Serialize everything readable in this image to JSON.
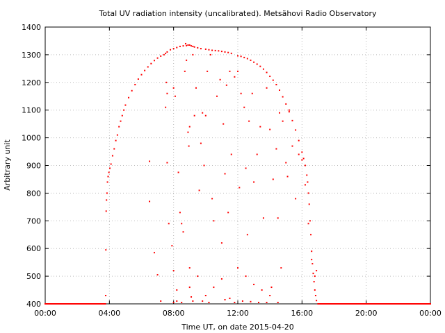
{
  "chart_data": {
    "type": "scatter",
    "title": "Total UV radiation intensity (uncalibrated). Metsähovi Radio Observatory",
    "xlabel": "Time UT, on date 2015-04-20",
    "ylabel": "Arbitrary unit",
    "x_unit": "hours UT",
    "xlim": [
      0,
      24
    ],
    "ylim": [
      400,
      1400
    ],
    "xticks": [
      0,
      4,
      8,
      12,
      16,
      20,
      24
    ],
    "xtick_labels": [
      "00:00",
      "04:00",
      "08:00",
      "12:00",
      "16:00",
      "20:00",
      "00:00"
    ],
    "yticks": [
      400,
      500,
      600,
      700,
      800,
      900,
      1000,
      1100,
      1200,
      1300,
      1400
    ],
    "ytick_labels": [
      "400",
      "500",
      "600",
      "700",
      "800",
      "900",
      "1000",
      "1100",
      "1200",
      "1300",
      "1400"
    ],
    "grid": true,
    "marker_color": "#ff0000",
    "series": [
      {
        "points": [
          [
            0.0,
            400
          ],
          [
            0.5,
            400
          ],
          [
            1.0,
            400
          ],
          [
            1.5,
            400
          ],
          [
            2.0,
            400
          ],
          [
            2.5,
            400
          ],
          [
            3.0,
            400
          ],
          [
            3.5,
            400
          ],
          [
            3.75,
            400
          ],
          [
            3.77,
            430
          ],
          [
            3.78,
            595
          ],
          [
            3.8,
            735
          ],
          [
            3.82,
            775
          ],
          [
            3.85,
            800
          ],
          [
            3.88,
            840
          ],
          [
            3.92,
            860
          ],
          [
            3.97,
            875
          ],
          [
            4.03,
            890
          ],
          [
            4.1,
            905
          ],
          [
            4.2,
            935
          ],
          [
            4.3,
            960
          ],
          [
            4.4,
            990
          ],
          [
            4.5,
            1010
          ],
          [
            4.6,
            1040
          ],
          [
            4.7,
            1060
          ],
          [
            4.8,
            1080
          ],
          [
            4.9,
            1100
          ],
          [
            5.0,
            1118
          ],
          [
            5.2,
            1145
          ],
          [
            5.4,
            1170
          ],
          [
            5.6,
            1192
          ],
          [
            5.8,
            1212
          ],
          [
            6.0,
            1228
          ],
          [
            6.2,
            1243
          ],
          [
            6.4,
            1256
          ],
          [
            6.6,
            1268
          ],
          [
            6.8,
            1279
          ],
          [
            7.0,
            1288
          ],
          [
            7.2,
            1295
          ],
          [
            7.4,
            1300
          ],
          [
            7.5,
            1305
          ],
          [
            7.6,
            1310
          ],
          [
            7.8,
            1318
          ],
          [
            8.0,
            1322
          ],
          [
            8.2,
            1326
          ],
          [
            8.4,
            1330
          ],
          [
            8.6,
            1332
          ],
          [
            8.75,
            1340
          ],
          [
            8.8,
            1333
          ],
          [
            8.9,
            1335
          ],
          [
            9.0,
            1335
          ],
          [
            9.1,
            1332
          ],
          [
            9.2,
            1330
          ],
          [
            9.3,
            1328
          ],
          [
            9.5,
            1325
          ],
          [
            9.7,
            1322
          ],
          [
            10.0,
            1320
          ],
          [
            10.2,
            1318
          ],
          [
            10.4,
            1316
          ],
          [
            10.6,
            1315
          ],
          [
            10.8,
            1314
          ],
          [
            11.0,
            1312
          ],
          [
            11.2,
            1310
          ],
          [
            11.4,
            1308
          ],
          [
            11.6,
            1305
          ],
          [
            12.0,
            1296
          ],
          [
            12.2,
            1294
          ],
          [
            12.4,
            1290
          ],
          [
            12.6,
            1286
          ],
          [
            12.8,
            1280
          ],
          [
            13.0,
            1273
          ],
          [
            13.2,
            1266
          ],
          [
            13.4,
            1258
          ],
          [
            13.6,
            1248
          ],
          [
            13.8,
            1236
          ],
          [
            14.0,
            1222
          ],
          [
            14.2,
            1208
          ],
          [
            14.4,
            1192
          ],
          [
            14.6,
            1172
          ],
          [
            14.8,
            1148
          ],
          [
            15.0,
            1122
          ],
          [
            15.2,
            1094
          ],
          [
            15.4,
            1062
          ],
          [
            15.6,
            1028
          ],
          [
            15.8,
            990
          ],
          [
            16.0,
            948
          ],
          [
            16.1,
            925
          ],
          [
            16.2,
            900
          ],
          [
            16.3,
            865
          ],
          [
            16.35,
            840
          ],
          [
            16.4,
            800
          ],
          [
            16.45,
            760
          ],
          [
            16.5,
            700
          ],
          [
            16.55,
            650
          ],
          [
            16.6,
            590
          ],
          [
            16.65,
            545
          ],
          [
            16.7,
            510
          ],
          [
            16.75,
            480
          ],
          [
            16.8,
            450
          ],
          [
            16.85,
            430
          ],
          [
            16.9,
            412
          ],
          [
            17.0,
            400
          ],
          [
            17.5,
            400
          ],
          [
            18.0,
            400
          ],
          [
            18.5,
            400
          ],
          [
            19.0,
            400
          ],
          [
            19.5,
            400
          ],
          [
            20.0,
            400
          ],
          [
            20.5,
            400
          ],
          [
            21.0,
            400
          ],
          [
            21.5,
            400
          ],
          [
            22.0,
            400
          ],
          [
            22.5,
            400
          ],
          [
            23.0,
            400
          ],
          [
            23.5,
            400
          ],
          [
            24.0,
            400
          ],
          [
            6.5,
            915
          ],
          [
            6.5,
            770
          ],
          [
            6.8,
            585
          ],
          [
            7.0,
            505
          ],
          [
            7.2,
            410
          ],
          [
            7.5,
            1110
          ],
          [
            7.55,
            1200
          ],
          [
            7.6,
            1160
          ],
          [
            7.6,
            910
          ],
          [
            7.7,
            690
          ],
          [
            7.9,
            610
          ],
          [
            8.0,
            405
          ],
          [
            8.0,
            1180
          ],
          [
            8.1,
            1150
          ],
          [
            8.2,
            410
          ],
          [
            8.3,
            875
          ],
          [
            8.4,
            730
          ],
          [
            8.5,
            690
          ],
          [
            8.6,
            660
          ],
          [
            8.7,
            1240
          ],
          [
            8.8,
            1280
          ],
          [
            8.9,
            1020
          ],
          [
            8.95,
            970
          ],
          [
            9.0,
            1040
          ],
          [
            9.0,
            530
          ],
          [
            9.1,
            425
          ],
          [
            9.2,
            1300
          ],
          [
            9.3,
            1080
          ],
          [
            9.4,
            1180
          ],
          [
            9.6,
            810
          ],
          [
            9.7,
            980
          ],
          [
            9.8,
            1090
          ],
          [
            9.9,
            900
          ],
          [
            10.0,
            1080
          ],
          [
            10.1,
            1240
          ],
          [
            10.3,
            1300
          ],
          [
            10.4,
            780
          ],
          [
            10.5,
            700
          ],
          [
            10.7,
            1150
          ],
          [
            10.9,
            1210
          ],
          [
            11.0,
            620
          ],
          [
            11.1,
            1050
          ],
          [
            11.2,
            870
          ],
          [
            11.3,
            1190
          ],
          [
            11.4,
            730
          ],
          [
            11.5,
            1240
          ],
          [
            11.6,
            940
          ],
          [
            11.8,
            1220
          ],
          [
            12.0,
            1240
          ],
          [
            12.1,
            820
          ],
          [
            12.2,
            1160
          ],
          [
            12.4,
            1110
          ],
          [
            12.5,
            890
          ],
          [
            12.6,
            650
          ],
          [
            12.7,
            1060
          ],
          [
            12.9,
            1160
          ],
          [
            13.0,
            840
          ],
          [
            13.2,
            940
          ],
          [
            13.4,
            1040
          ],
          [
            13.6,
            710
          ],
          [
            13.8,
            1180
          ],
          [
            14.0,
            1030
          ],
          [
            14.1,
            460
          ],
          [
            14.2,
            850
          ],
          [
            14.4,
            960
          ],
          [
            14.5,
            710
          ],
          [
            14.6,
            1090
          ],
          [
            14.7,
            530
          ],
          [
            14.8,
            1060
          ],
          [
            15.0,
            910
          ],
          [
            15.1,
            860
          ],
          [
            15.2,
            1100
          ],
          [
            15.4,
            970
          ],
          [
            15.6,
            780
          ],
          [
            15.8,
            940
          ],
          [
            16.0,
            920
          ],
          [
            16.2,
            830
          ],
          [
            16.4,
            690
          ],
          [
            16.6,
            560
          ],
          [
            16.8,
            500
          ],
          [
            16.9,
            520
          ],
          [
            8.0,
            520
          ],
          [
            8.2,
            450
          ],
          [
            9.0,
            460
          ],
          [
            9.5,
            500
          ],
          [
            10.0,
            430
          ],
          [
            10.5,
            460
          ],
          [
            11.0,
            490
          ],
          [
            11.5,
            420
          ],
          [
            12.0,
            530
          ],
          [
            12.5,
            500
          ],
          [
            13.0,
            470
          ],
          [
            13.5,
            450
          ],
          [
            14.0,
            430
          ],
          [
            14.5,
            405
          ],
          [
            9.2,
            410
          ],
          [
            10.2,
            405
          ],
          [
            11.8,
            405
          ],
          [
            12.8,
            408
          ],
          [
            13.8,
            405
          ],
          [
            8.5,
            405
          ],
          [
            9.8,
            410
          ],
          [
            11.2,
            415
          ],
          [
            12.3,
            410
          ],
          [
            13.3,
            405
          ]
        ]
      }
    ]
  }
}
